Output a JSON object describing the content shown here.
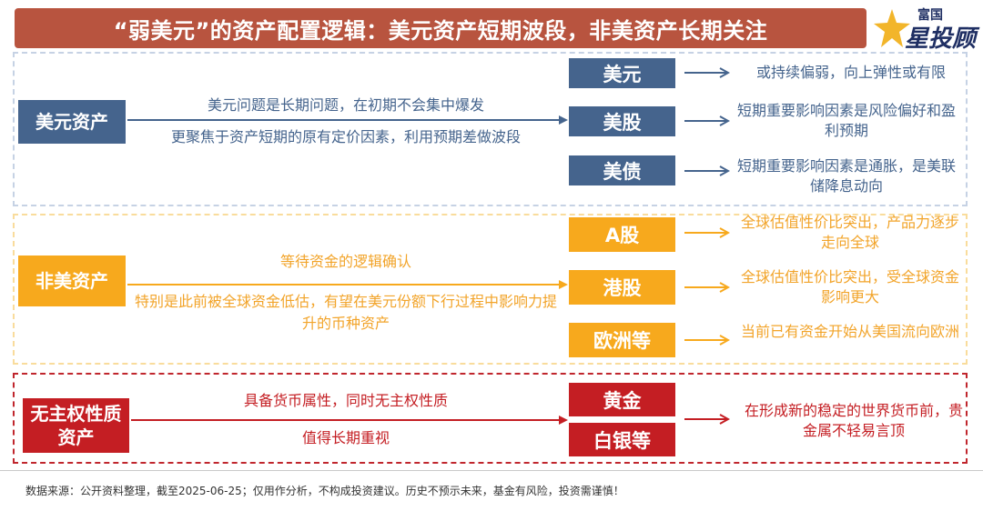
{
  "title": "“弱美元”的资产配置逻辑：美元资产短期波段，非美资产长期关注",
  "logo": {
    "top": "富国",
    "main": "星投顾"
  },
  "colors": {
    "title_bg": "#b8543f",
    "usd": "#45648d",
    "nonusd": "#f7a91d",
    "gold": "#c41e23"
  },
  "usd_section": {
    "main": "美元资产",
    "desc_line1": "美元问题是长期问题，在初期不会集中爆发",
    "desc_line2": "更聚焦于资产短期的原有定价因素，利用预期差做波段",
    "assets": [
      {
        "label": "美元",
        "note": "或持续偏弱，向上弹性或有限"
      },
      {
        "label": "美股",
        "note": "短期重要影响因素是风险偏好和盈利预期"
      },
      {
        "label": "美债",
        "note": "短期重要影响因素是通胀，是美联储降息动向"
      }
    ]
  },
  "nonusd_section": {
    "main": "非美资产",
    "desc_line1": "等待资金的逻辑确认",
    "desc_line2": "特别是此前被全球资金低估，有望在美元份额下行过程中影响力提升的币种资产",
    "assets": [
      {
        "label": "A股",
        "note": "全球估值性价比突出，产品力逐步走向全球"
      },
      {
        "label": "港股",
        "note": "全球估值性价比突出，受全球资金影响更大"
      },
      {
        "label": "欧洲等",
        "note": "当前已有资金开始从美国流向欧洲"
      }
    ]
  },
  "gold_section": {
    "main": "无主权性质资产",
    "desc_line1": "具备货币属性，同时无主权性质",
    "desc_line2": "值得长期重视",
    "assets": [
      {
        "label": "黄金"
      },
      {
        "label": "白银等"
      }
    ],
    "note": "在形成新的稳定的世界货币前，贵金属不轻易言顶"
  },
  "footer": "数据来源：公开资料整理，截至2025-06-25；仅用作分析，不构成投资建议。历史不预示未来，基金有风险，投资需谨慎！"
}
